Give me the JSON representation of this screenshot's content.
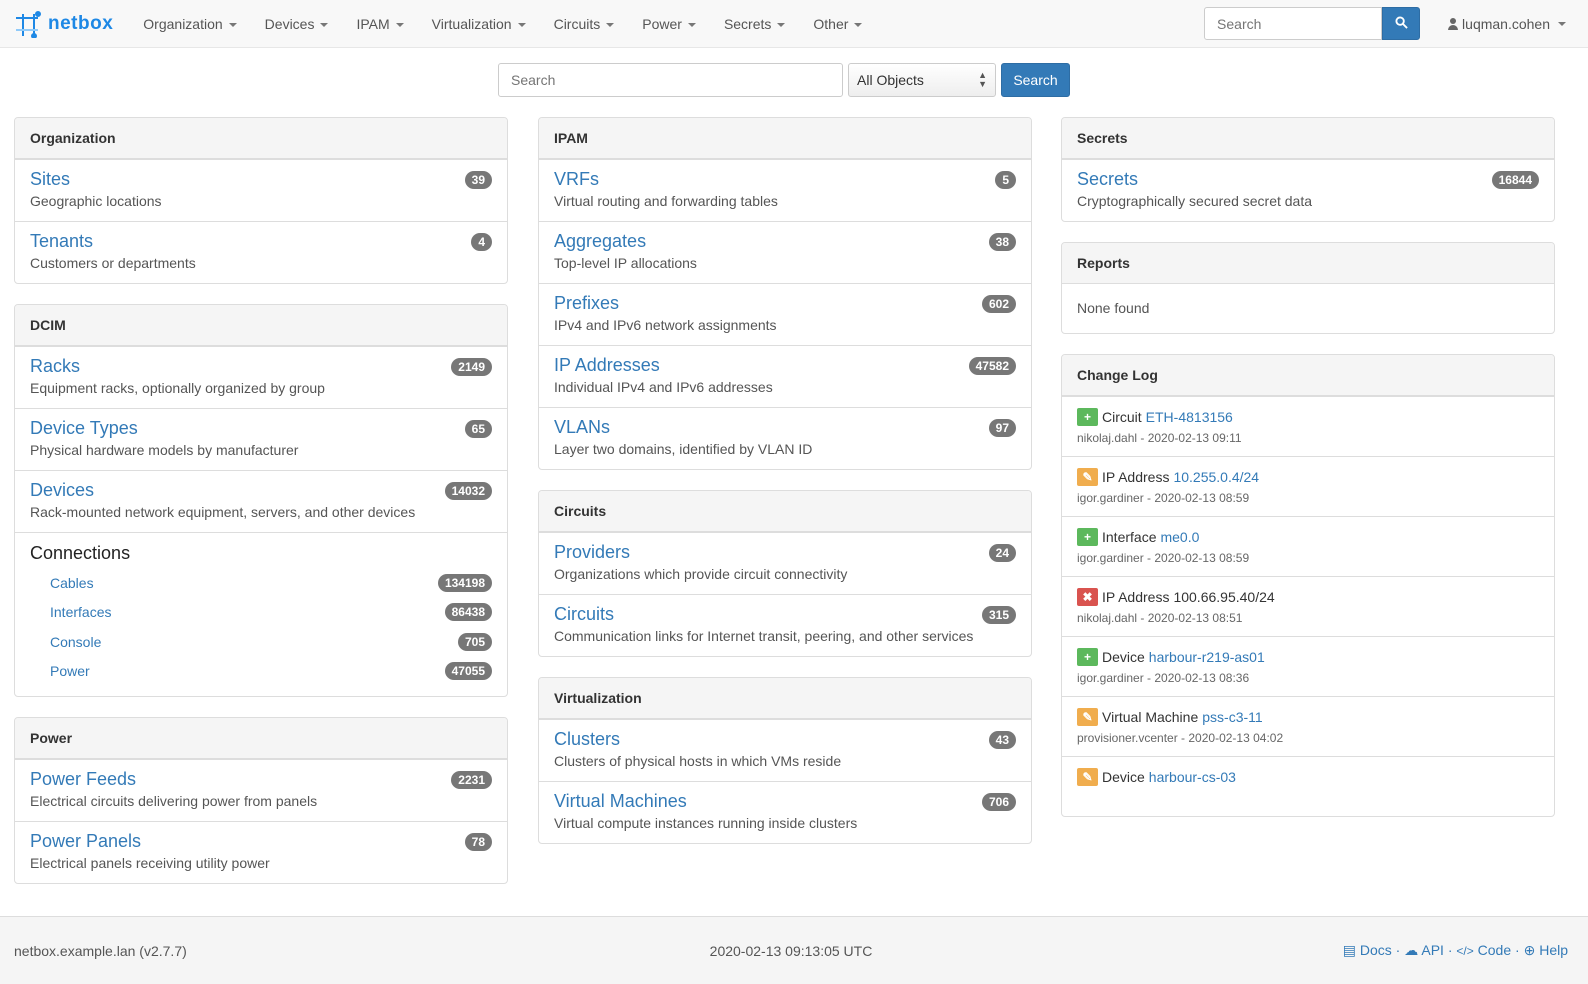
{
  "nav": {
    "brand": "netbox",
    "menu": [
      "Organization",
      "Devices",
      "IPAM",
      "Virtualization",
      "Circuits",
      "Power",
      "Secrets",
      "Other"
    ],
    "search_placeholder": "Search",
    "user": "luqman.cohen"
  },
  "search": {
    "placeholder": "Search",
    "object_type": "All Objects",
    "button": "Search"
  },
  "columns": [
    [
      {
        "title": "Organization",
        "rows": [
          {
            "t": "Sites",
            "d": "Geographic locations",
            "c": "39"
          },
          {
            "t": "Tenants",
            "d": "Customers or departments",
            "c": "4"
          }
        ]
      },
      {
        "title": "DCIM",
        "rows": [
          {
            "t": "Racks",
            "d": "Equipment racks, optionally organized by group",
            "c": "2149"
          },
          {
            "t": "Device Types",
            "d": "Physical hardware models by manufacturer",
            "c": "65"
          },
          {
            "t": "Devices",
            "d": "Rack-mounted network equipment, servers, and other devices",
            "c": "14032"
          }
        ],
        "connections": {
          "title": "Connections",
          "items": [
            {
              "t": "Cables",
              "c": "134198"
            },
            {
              "t": "Interfaces",
              "c": "86438"
            },
            {
              "t": "Console",
              "c": "705"
            },
            {
              "t": "Power",
              "c": "47055"
            }
          ]
        }
      },
      {
        "title": "Power",
        "rows": [
          {
            "t": "Power Feeds",
            "d": "Electrical circuits delivering power from panels",
            "c": "2231"
          },
          {
            "t": "Power Panels",
            "d": "Electrical panels receiving utility power",
            "c": "78"
          }
        ]
      }
    ],
    [
      {
        "title": "IPAM",
        "rows": [
          {
            "t": "VRFs",
            "d": "Virtual routing and forwarding tables",
            "c": "5"
          },
          {
            "t": "Aggregates",
            "d": "Top-level IP allocations",
            "c": "38"
          },
          {
            "t": "Prefixes",
            "d": "IPv4 and IPv6 network assignments",
            "c": "602"
          },
          {
            "t": "IP Addresses",
            "d": "Individual IPv4 and IPv6 addresses",
            "c": "47582"
          },
          {
            "t": "VLANs",
            "d": "Layer two domains, identified by VLAN ID",
            "c": "97"
          }
        ]
      },
      {
        "title": "Circuits",
        "rows": [
          {
            "t": "Providers",
            "d": "Organizations which provide circuit connectivity",
            "c": "24"
          },
          {
            "t": "Circuits",
            "d": "Communication links for Internet transit, peering, and other services",
            "c": "315"
          }
        ]
      },
      {
        "title": "Virtualization",
        "rows": [
          {
            "t": "Clusters",
            "d": "Clusters of physical hosts in which VMs reside",
            "c": "43"
          },
          {
            "t": "Virtual Machines",
            "d": "Virtual compute instances running inside clusters",
            "c": "706"
          }
        ]
      }
    ],
    [
      {
        "title": "Secrets",
        "rows": [
          {
            "t": "Secrets",
            "d": "Cryptographically secured secret data",
            "c": "16844"
          }
        ]
      },
      {
        "title": "Reports",
        "none": "None found"
      }
    ]
  ],
  "changelog": {
    "title": "Change Log",
    "colors": {
      "create": "#5cb85c",
      "update": "#f0ad4e",
      "delete": "#d9534f"
    },
    "items": [
      {
        "action": "create",
        "type": "Circuit",
        "obj": "ETH-4813156",
        "meta": "nikolaj.dahl - 2020-02-13 09:11"
      },
      {
        "action": "update",
        "type": "IP Address",
        "obj": "10.255.0.4/24",
        "meta": "igor.gardiner - 2020-02-13 08:59"
      },
      {
        "action": "create",
        "type": "Interface",
        "obj": "me0.0",
        "meta": "igor.gardiner - 2020-02-13 08:59"
      },
      {
        "action": "delete",
        "type": "IP Address",
        "obj": "100.66.95.40/24",
        "meta": "nikolaj.dahl - 2020-02-13 08:51"
      },
      {
        "action": "create",
        "type": "Device",
        "obj": "harbour-r219-as01",
        "meta": "igor.gardiner - 2020-02-13 08:36"
      },
      {
        "action": "update",
        "type": "Virtual Machine",
        "obj": "pss-c3-11",
        "meta": "provisioner.vcenter - 2020-02-13 04:02"
      },
      {
        "action": "update",
        "type": "Device",
        "obj": "harbour-cs-03",
        "meta": ""
      }
    ]
  },
  "footer": {
    "host": "netbox.example.lan (v2.7.7)",
    "time": "2020-02-13 09:13:05 UTC",
    "links": [
      "Docs",
      "API",
      "Code",
      "Help"
    ]
  }
}
